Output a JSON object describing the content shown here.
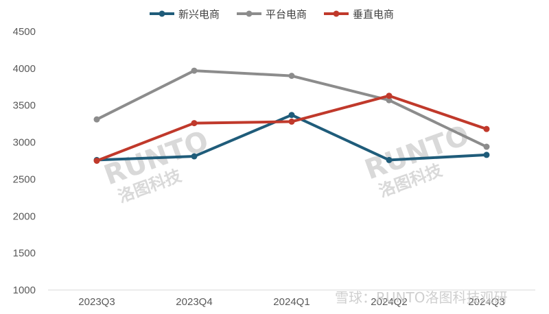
{
  "chart_data": {
    "type": "line",
    "categories": [
      "2023Q3",
      "2023Q4",
      "2024Q1",
      "2024Q2",
      "2024Q3"
    ],
    "ylim": [
      1000,
      4500
    ],
    "yticks": [
      1000,
      1500,
      2000,
      2500,
      3000,
      3500,
      4000,
      4500
    ],
    "grid": false,
    "legend_position": "top",
    "series": [
      {
        "name": "新兴电商",
        "color": "#1f5c7a",
        "values": [
          2760,
          2810,
          3370,
          2760,
          2830
        ]
      },
      {
        "name": "平台电商",
        "color": "#8c8c8c",
        "values": [
          3310,
          3970,
          3900,
          3570,
          2940
        ]
      },
      {
        "name": "垂直电商",
        "color": "#c0392b",
        "values": [
          2750,
          3260,
          3280,
          3630,
          3180
        ]
      }
    ]
  },
  "watermarks": {
    "brand_latin": "RUNTO",
    "brand_cn": "洛图科技",
    "footer": "雪球：RUNTO洛图科技观研"
  }
}
